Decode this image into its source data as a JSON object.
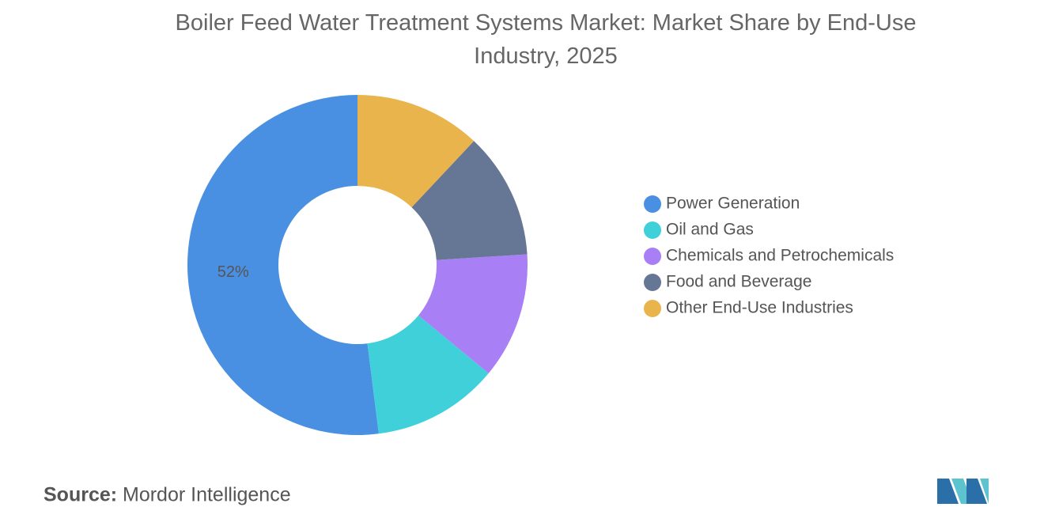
{
  "chart_data": {
    "type": "donut",
    "title": "Boiler Feed Water Treatment Systems Market: Market Share by End-Use Industry, 2025",
    "categories": [
      "Power Generation",
      "Oil and Gas",
      "Chemicals and Petrochemicals",
      "Food and Beverage",
      "Other End-Use Industries"
    ],
    "values": [
      52,
      12,
      12,
      12,
      12
    ],
    "value_labels": [
      "52%",
      null,
      null,
      null,
      null
    ],
    "colors": [
      "#4a90e2",
      "#3fd0da",
      "#a97ff5",
      "#667796",
      "#e9b44c"
    ],
    "legend": "right"
  },
  "source_label": "Source:",
  "source": "Mordor Intelligence"
}
